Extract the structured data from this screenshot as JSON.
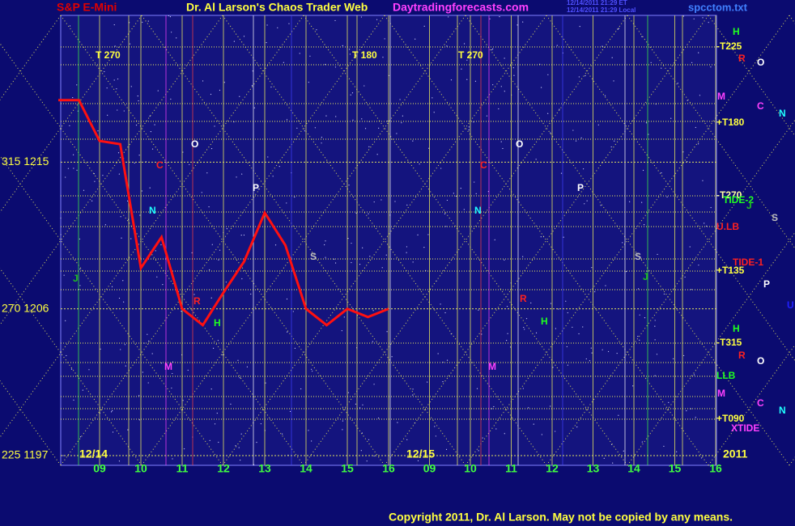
{
  "chart_data": {
    "type": "line",
    "title": "S&P E-Mini",
    "subtitle": "Dr. Al Larson's Chaos Trader Web",
    "categories": [
      null,
      null,
      "09",
      null,
      "10",
      null,
      "11",
      null,
      "12",
      null,
      "13",
      null,
      "14",
      null,
      "15",
      null,
      "16",
      null,
      "09",
      null,
      "10",
      null,
      "11",
      null,
      "12",
      null,
      "13",
      null,
      "14",
      null,
      "15",
      null,
      "16"
    ],
    "series": [
      {
        "name": "S&P E-Mini",
        "color": "#ff1010",
        "values": [
          1218.8,
          1218.8,
          1216.3,
          1216.1,
          1208.5,
          1210.4,
          1206,
          1205,
          1207,
          1208.9,
          1211.9,
          1209.9,
          1206,
          1205,
          1206,
          1205.5,
          1206,
          null,
          null,
          null,
          null,
          null,
          null,
          null,
          null,
          null,
          null,
          null,
          null,
          null,
          null,
          null,
          null
        ]
      }
    ],
    "ylim": [
      1197,
      1224
    ],
    "yticks": [
      {
        "value": 1197,
        "label": "225  1197"
      },
      {
        "value": 1206,
        "label": "270  1206"
      },
      {
        "value": 1215,
        "label": "315  1215"
      }
    ],
    "grid": true,
    "annotations": [
      {
        "text": "Daytradingforecasts.com",
        "color": "#ff40ff"
      },
      {
        "text": "12/14/2011 21:29 ET",
        "color": "#5050ff"
      },
      {
        "text": "12/14/2011 21:29 Local",
        "color": "#5050ff"
      },
      {
        "text": "spcctom.txt",
        "color": "#4080ff"
      },
      {
        "text": "T  270",
        "color": "#ffff40"
      },
      {
        "text": "T  180",
        "color": "#ffff40"
      },
      {
        "text": "T  270",
        "color": "#ffff40"
      },
      {
        "text": "12/14",
        "color": "#ffff40"
      },
      {
        "text": "12/15",
        "color": "#ffff40"
      },
      {
        "text": "2011",
        "color": "#ffff40"
      },
      {
        "text": "H",
        "color": "#20ff20"
      },
      {
        "text": "-T225",
        "color": "#ffff40"
      },
      {
        "text": "R",
        "color": "#ff2020"
      },
      {
        "text": "O",
        "color": "#ffffff"
      },
      {
        "text": "M",
        "color": "#ff40ff"
      },
      {
        "text": "C",
        "color": "#ff40ff"
      },
      {
        "text": "N",
        "color": "#20ffff"
      },
      {
        "text": "+T180",
        "color": "#ffff40"
      },
      {
        "text": "-T270",
        "color": "#ffffa0"
      },
      {
        "text": "TIDE-2",
        "color": "#20ff20"
      },
      {
        "text": "J",
        "color": "#20c020"
      },
      {
        "text": "S",
        "color": "#c0c0c0"
      },
      {
        "text": "U.LB",
        "color": "#ff2020"
      },
      {
        "text": "TIDE-1",
        "color": "#ff2020"
      },
      {
        "text": "+T135",
        "color": "#ffff40"
      },
      {
        "text": "P",
        "color": "#ffffff"
      },
      {
        "text": "U",
        "color": "#2020ff"
      },
      {
        "text": "H",
        "color": "#20ff20"
      },
      {
        "text": "-T315",
        "color": "#ffff40"
      },
      {
        "text": "R",
        "color": "#ff2020"
      },
      {
        "text": "O",
        "color": "#ffffff"
      },
      {
        "text": "LLB",
        "color": "#20ff20"
      },
      {
        "text": "M",
        "color": "#ff40ff"
      },
      {
        "text": "C",
        "color": "#ff40ff"
      },
      {
        "text": "N",
        "color": "#20ffff"
      },
      {
        "text": "+T090",
        "color": "#ffff40"
      },
      {
        "text": "XTIDE",
        "color": "#ff40ff"
      },
      {
        "text": "O",
        "color": "#ffffff"
      },
      {
        "text": "C",
        "color": "#ff2020"
      },
      {
        "text": "N",
        "color": "#20ffff"
      },
      {
        "text": "P",
        "color": "#ffffff"
      },
      {
        "text": "J",
        "color": "#20c020"
      },
      {
        "text": "S",
        "color": "#c0c0c0"
      },
      {
        "text": "R",
        "color": "#ff2020"
      },
      {
        "text": "H",
        "color": "#20ff20"
      },
      {
        "text": "M",
        "color": "#ff40ff"
      },
      {
        "text": "O",
        "color": "#ffffff"
      },
      {
        "text": "C",
        "color": "#ff2020"
      },
      {
        "text": "N",
        "color": "#20ffff"
      },
      {
        "text": "P",
        "color": "#ffffff"
      },
      {
        "text": "S",
        "color": "#c0c0c0"
      },
      {
        "text": "R",
        "color": "#ff2020"
      },
      {
        "text": "H",
        "color": "#20ff20"
      },
      {
        "text": "M",
        "color": "#ff40ff"
      },
      {
        "text": "J",
        "color": "#20c020"
      },
      {
        "text": "Copyright 2011, Dr. Al Larson. May not be copied by any means.",
        "color": "#ffff40"
      }
    ]
  }
}
